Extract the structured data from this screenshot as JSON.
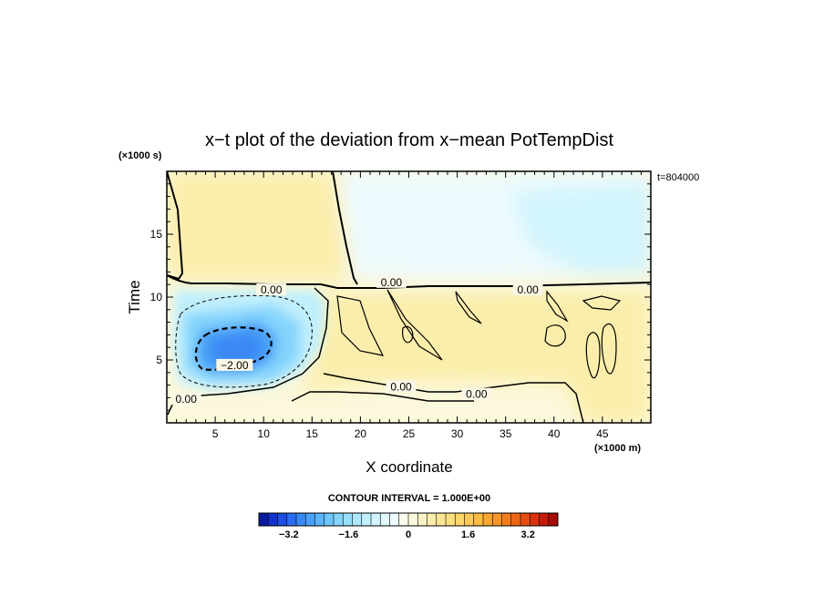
{
  "chart_data": {
    "type": "heatmap",
    "title": "x−t plot of the deviation from x−mean PotTempDist",
    "xlabel": "X coordinate",
    "ylabel": "Time",
    "x_unit_label": "(×1000 m)",
    "y_unit_label": "(×1000 s)",
    "time_label": "t=804000",
    "xlim": [
      0,
      50
    ],
    "ylim": [
      0,
      20
    ],
    "x_ticks": [
      "5",
      "10",
      "15",
      "20",
      "25",
      "30",
      "35",
      "40",
      "45"
    ],
    "y_ticks": [
      "5",
      "10",
      "15"
    ],
    "contour_interval_label": "CONTOUR INTERVAL = 1.000E+00",
    "contour_labels": [
      {
        "text": "0.00",
        "x": 10.8,
        "y": 10.5
      },
      {
        "text": "0.00",
        "x": 23.2,
        "y": 11.1
      },
      {
        "text": "0.00",
        "x": 37.3,
        "y": 10.5
      },
      {
        "text": "−2.00",
        "x": 7.0,
        "y": 4.5
      },
      {
        "text": "0.00",
        "x": 2.0,
        "y": 1.8
      },
      {
        "text": "0.00",
        "x": 24.2,
        "y": 2.8
      },
      {
        "text": "0.00",
        "x": 32.0,
        "y": 2.2
      }
    ],
    "colorbar": {
      "min": -4.0,
      "max": 4.0,
      "tick_labels": [
        "−3.2",
        "−1.6",
        "0",
        "1.6",
        "3.2"
      ],
      "tick_values": [
        -3.2,
        -1.6,
        0,
        1.6,
        3.2
      ],
      "colors": [
        "#0a1a9c",
        "#1133cc",
        "#1c4de0",
        "#2a6cf0",
        "#3a88f5",
        "#4aa0f8",
        "#5cb4fa",
        "#6ec6fb",
        "#84d4fc",
        "#98e0fd",
        "#ace8fd",
        "#c0effd",
        "#d2f4fd",
        "#e2f8fd",
        "#eefbfe",
        "#fbfbf0",
        "#fbf8dc",
        "#fbf3c4",
        "#fbeeac",
        "#fbe896",
        "#fbe080",
        "#fbd66a",
        "#fbca56",
        "#fbbb44",
        "#f9a834",
        "#f79428",
        "#f47e1e",
        "#ee6616",
        "#e44c10",
        "#d8330c",
        "#c41c08",
        "#a80a04"
      ]
    },
    "regions": [
      {
        "name": "background",
        "value": 0.1
      },
      {
        "name": "upper-left-warm",
        "value": 0.6
      },
      {
        "name": "upper-right-cool",
        "value": -0.4
      },
      {
        "name": "upper-right-cool-strong",
        "value": -0.8
      },
      {
        "name": "lower-warm-band",
        "value": 0.7
      },
      {
        "name": "cold-pool-outer",
        "value": -1.2
      },
      {
        "name": "cold-pool-mid",
        "value": -1.8
      },
      {
        "name": "cold-pool-core",
        "value": -2.6
      },
      {
        "name": "cold-pool-center",
        "value": -3.0
      }
    ]
  }
}
